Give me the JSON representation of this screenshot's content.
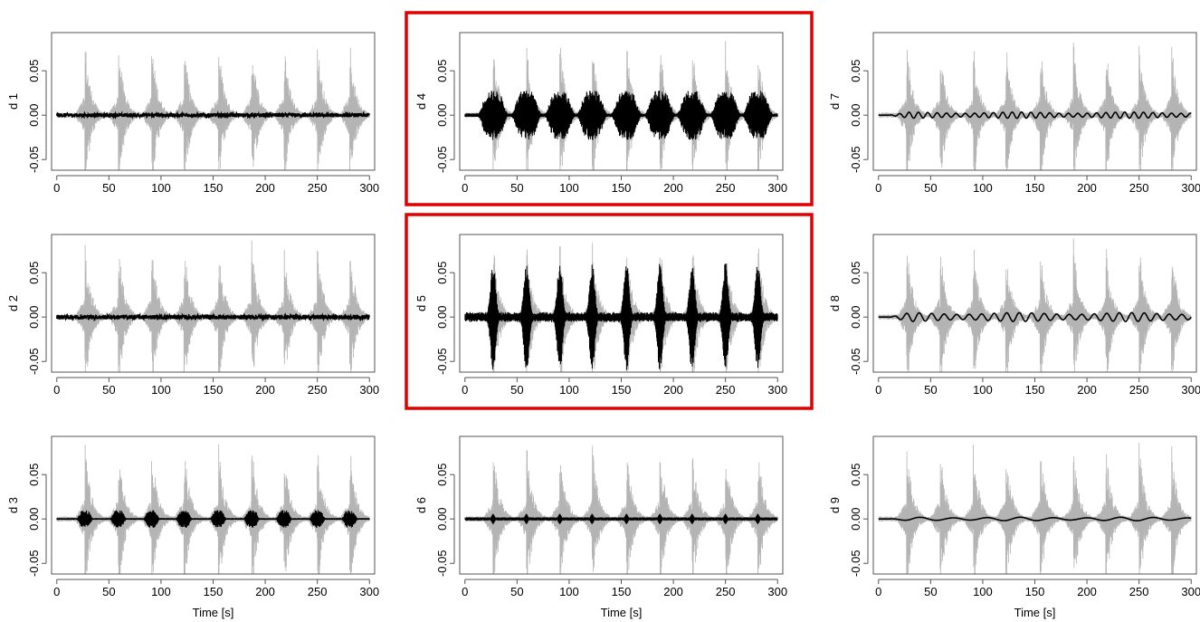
{
  "colors": {
    "background_signal": "#b4b4b4",
    "detail_signal": "#000000",
    "highlight_box": "#e00000",
    "axes": "#555555"
  },
  "shared": {
    "x_ticks": [
      0,
      50,
      100,
      150,
      200,
      250,
      300
    ],
    "y_ticks": [
      -0.05,
      0.0,
      0.05
    ],
    "x_tick_labels": [
      "0",
      "50",
      "100",
      "150",
      "200",
      "250",
      "300"
    ],
    "y_tick_labels": [
      "-0.05",
      "0.00",
      "0.05"
    ],
    "xlabel": "Time [s]",
    "xlim": [
      -5,
      305
    ],
    "ylim": [
      -0.062,
      0.093
    ],
    "burst_times": [
      27,
      59,
      91,
      122,
      155,
      187,
      218,
      250,
      281
    ]
  },
  "chart_data": [
    {
      "type": "line",
      "ylabel": "d 1",
      "highlighted": false,
      "xlabel": "",
      "series": [
        {
          "style": "background",
          "envelope": 0.09,
          "base": 0.003
        },
        {
          "style": "detail",
          "kind": "flat",
          "amp": 0.0015,
          "noise": 0.0008
        }
      ]
    },
    {
      "type": "line",
      "ylabel": "d 2",
      "highlighted": false,
      "xlabel": "",
      "series": [
        {
          "style": "background",
          "envelope": 0.09,
          "base": 0.003
        },
        {
          "style": "detail",
          "kind": "flat",
          "amp": 0.0018,
          "noise": 0.0008
        }
      ]
    },
    {
      "type": "line",
      "ylabel": "d 3",
      "highlighted": false,
      "xlabel": "Time [s]",
      "series": [
        {
          "style": "background",
          "envelope": 0.09,
          "base": 0.003
        },
        {
          "style": "detail",
          "kind": "burst",
          "amp": 0.01,
          "width": 6,
          "noise": 0.001
        }
      ]
    },
    {
      "type": "line",
      "ylabel": "d 4",
      "highlighted": true,
      "xlabel": "",
      "series": [
        {
          "style": "background",
          "envelope": 0.09,
          "base": 0.003
        },
        {
          "style": "detail",
          "kind": "burst",
          "amp": 0.028,
          "width": 11,
          "noise": 0.002
        }
      ]
    },
    {
      "type": "line",
      "ylabel": "d 5",
      "highlighted": true,
      "xlabel": "",
      "series": [
        {
          "style": "background",
          "envelope": 0.09,
          "base": 0.003
        },
        {
          "style": "detail",
          "kind": "spike",
          "amp": 0.062,
          "width": 3.5,
          "floor": 0.006
        }
      ]
    },
    {
      "type": "line",
      "ylabel": "d 6",
      "highlighted": false,
      "xlabel": "Time [s]",
      "series": [
        {
          "style": "background",
          "envelope": 0.09,
          "base": 0.003
        },
        {
          "style": "detail",
          "kind": "diamond",
          "amp": 0.006,
          "width": 3
        }
      ]
    },
    {
      "type": "line",
      "ylabel": "d 7",
      "highlighted": false,
      "xlabel": "",
      "series": [
        {
          "style": "background",
          "envelope": 0.09,
          "base": 0.003
        },
        {
          "style": "detail",
          "kind": "wave",
          "amp": 0.0035,
          "period": 9
        }
      ]
    },
    {
      "type": "line",
      "ylabel": "d 8",
      "highlighted": false,
      "xlabel": "",
      "series": [
        {
          "style": "background",
          "envelope": 0.09,
          "base": 0.003
        },
        {
          "style": "detail",
          "kind": "wave",
          "amp": 0.005,
          "period": 12
        }
      ]
    },
    {
      "type": "line",
      "ylabel": "d 9",
      "highlighted": false,
      "xlabel": "Time [s]",
      "series": [
        {
          "style": "background",
          "envelope": 0.09,
          "base": 0.003
        },
        {
          "style": "detail",
          "kind": "wave",
          "amp": 0.002,
          "period": 32
        }
      ]
    }
  ]
}
